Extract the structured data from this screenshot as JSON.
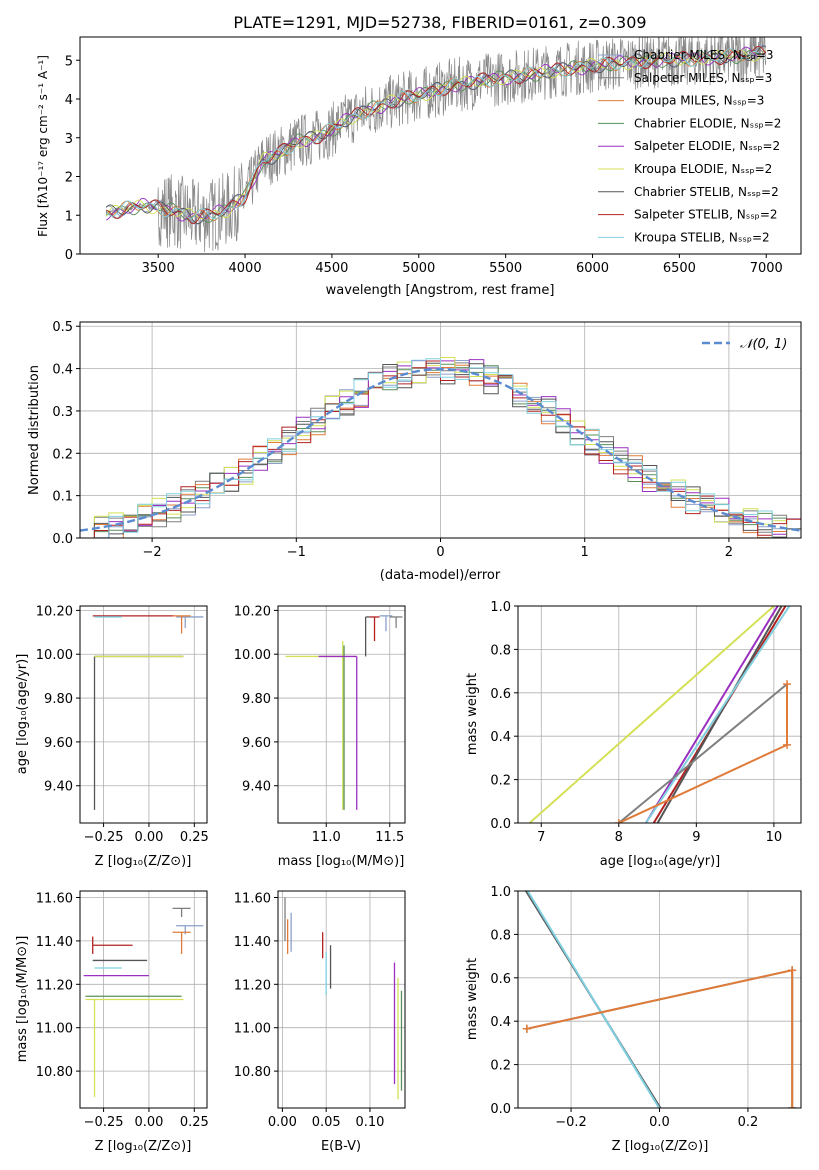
{
  "figure": {
    "title": "PLATE=1291, MJD=52738, FIBERID=0161, z=0.309"
  },
  "series_names": [
    "Chabrier MILES, Nₛₛₚ=3",
    "Salpeter MILES, Nₛₛₚ=3",
    "Kroupa MILES, Nₛₛₚ=3",
    "Chabrier ELODIE, Nₛₛₚ=2",
    "Salpeter ELODIE, Nₛₛₚ=2",
    "Kroupa ELODIE, Nₛₛₚ=2",
    "Chabrier STELIB, Nₛₛₚ=2",
    "Salpeter STELIB, Nₛₛₚ=2",
    "Kroupa STELIB, Nₛₛₚ=2"
  ],
  "colors": [
    "#8da0cb",
    "#7f7f7f",
    "#e07b39",
    "#5a8f5a",
    "#9b30c0",
    "#d4e157",
    "#555555",
    "#b22222",
    "#80d0e0"
  ],
  "chart_data": [
    {
      "id": "spectrum",
      "type": "line",
      "xlabel": "wavelength [Angstrom, rest frame]",
      "ylabel": "Flux [fλ10⁻¹⁷ erg cm⁻² s⁻¹ A⁻¹]",
      "xlim": [
        3050,
        7200
      ],
      "ylim": [
        0,
        5.6
      ],
      "xticks": [
        3500,
        4000,
        4500,
        5000,
        5500,
        6000,
        6500,
        7000
      ],
      "yticks": [
        0,
        1,
        2,
        3,
        4,
        5
      ],
      "grid": false,
      "legend": "upper right",
      "continuum": {
        "x": [
          3200,
          3300,
          3400,
          3500,
          3600,
          3700,
          3800,
          3900,
          4000,
          4100,
          4200,
          4300,
          4400,
          4500,
          4600,
          4700,
          4800,
          4900,
          5000,
          5200,
          5400,
          5600,
          5800,
          6000,
          6200,
          6400,
          6600,
          6800,
          7000
        ],
        "y": [
          1.05,
          1.15,
          1.25,
          1.2,
          1.1,
          0.95,
          1.0,
          1.15,
          1.5,
          2.4,
          2.6,
          2.9,
          3.0,
          3.2,
          3.5,
          3.7,
          3.85,
          4.0,
          4.1,
          4.35,
          4.5,
          4.6,
          4.75,
          4.85,
          4.95,
          5.0,
          5.05,
          5.1,
          5.2
        ]
      },
      "data_noise_sigma": 0.9
    },
    {
      "id": "residuals",
      "type": "histogram",
      "xlabel": "(data-model)/error",
      "ylabel": "Normed distribution",
      "xlim": [
        -2.5,
        2.5
      ],
      "ylim": [
        0,
        0.51
      ],
      "xticks": [
        -2,
        -1,
        0,
        1,
        2
      ],
      "yticks": [
        0.0,
        0.1,
        0.2,
        0.3,
        0.4,
        0.5
      ],
      "grid": true,
      "legend": "upper right",
      "reference_label": "𝒩(0, 1)",
      "reference_color": "#5b8bd0",
      "bin_width": 0.1
    },
    {
      "id": "age-vs-Z",
      "type": "scatter",
      "xlabel": "Z [log₁₀(Z/Z⊙)]",
      "ylabel": "age  [log₁₀(age/yr)]",
      "xlim": [
        -0.38,
        0.32
      ],
      "ylim": [
        9.23,
        10.22
      ],
      "xticks": [
        -0.25,
        0.0,
        0.25
      ],
      "yticks": [
        9.4,
        9.6,
        9.8,
        10.0,
        10.2
      ],
      "grid": true,
      "points": [
        {
          "s": 6,
          "x": -0.3,
          "y": 9.99,
          "xe": [
            0.0,
            0.49
          ],
          "ye": [
            0.7,
            0.0
          ]
        },
        {
          "s": 5,
          "x": -0.3,
          "y": 9.99,
          "xe": [
            0.0,
            0.49
          ],
          "ye": [
            0.0,
            0.0
          ]
        },
        {
          "s": 7,
          "x": -0.31,
          "y": 10.175,
          "xe": [
            0.0,
            0.45
          ],
          "ye": [
            0.0,
            0.0
          ]
        },
        {
          "s": 8,
          "x": -0.3,
          "y": 10.17,
          "xe": [
            0.0,
            0.15
          ],
          "ye": [
            0.0,
            0.0
          ]
        },
        {
          "s": 0,
          "x": 0.2,
          "y": 10.17,
          "xe": [
            0.05,
            0.1
          ],
          "ye": [
            0.05,
            0.0
          ]
        },
        {
          "s": 2,
          "x": 0.18,
          "y": 10.175,
          "xe": [
            0.05,
            0.05
          ],
          "ye": [
            0.08,
            0.0
          ]
        }
      ]
    },
    {
      "id": "age-vs-mass",
      "type": "scatter",
      "xlabel": "mass [log₁₀(M/M⊙)]",
      "ylabel": "",
      "xlim": [
        10.62,
        11.62
      ],
      "ylim": [
        9.23,
        10.22
      ],
      "xticks": [
        11.0,
        11.5
      ],
      "yticks": [
        9.4,
        9.6,
        9.8,
        10.0,
        10.2
      ],
      "grid": true,
      "points": [
        {
          "s": 5,
          "x": 11.13,
          "y": 9.99,
          "xe": [
            0.45,
            0.0
          ],
          "ye": [
            0.7,
            0.07
          ]
        },
        {
          "s": 3,
          "x": 11.14,
          "y": 9.99,
          "xe": [
            0.0,
            0.0
          ],
          "ye": [
            0.7,
            0.05
          ]
        },
        {
          "s": 4,
          "x": 11.24,
          "y": 9.99,
          "xe": [
            0.3,
            0.0
          ],
          "ye": [
            0.7,
            0.0
          ]
        },
        {
          "s": 7,
          "x": 11.38,
          "y": 10.17,
          "xe": [
            0.04,
            0.04
          ],
          "ye": [
            0.11,
            0.0
          ]
        },
        {
          "s": 6,
          "x": 11.31,
          "y": 10.17,
          "xe": [
            0.0,
            0.03
          ],
          "ye": [
            0.18,
            0.0
          ]
        },
        {
          "s": 0,
          "x": 11.47,
          "y": 10.175,
          "xe": [
            0.05,
            0.05
          ],
          "ye": [
            0.07,
            0.0
          ]
        },
        {
          "s": 1,
          "x": 11.55,
          "y": 10.17,
          "xe": [
            0.05,
            0.05
          ],
          "ye": [
            0.05,
            0.0
          ]
        }
      ]
    },
    {
      "id": "weight-vs-age",
      "type": "line",
      "xlabel": "age  [log₁₀(age/yr)]",
      "ylabel": "mass weight",
      "xlim": [
        6.7,
        10.35
      ],
      "ylim": [
        0,
        1
      ],
      "xticks": [
        7,
        8,
        9,
        10
      ],
      "yticks": [
        0.0,
        0.2,
        0.4,
        0.6,
        0.8,
        1.0
      ],
      "grid": true,
      "lines": [
        {
          "s": 5,
          "x": [
            6.85,
            10.0
          ],
          "y": [
            0.0,
            1.0
          ]
        },
        {
          "s": 4,
          "x": [
            8.35,
            10.05
          ],
          "y": [
            0.0,
            1.0
          ]
        },
        {
          "s": 7,
          "x": [
            8.45,
            10.15
          ],
          "y": [
            0.0,
            1.0
          ]
        },
        {
          "s": 6,
          "x": [
            8.5,
            10.1
          ],
          "y": [
            0.0,
            1.0
          ]
        },
        {
          "s": 8,
          "x": [
            8.35,
            10.2
          ],
          "y": [
            0.0,
            1.0
          ]
        },
        {
          "s": 1,
          "x": [
            8.0,
            10.17
          ],
          "y": [
            0.0,
            0.64
          ]
        },
        {
          "s": 2,
          "x": [
            8.0,
            10.17,
            10.17
          ],
          "y": [
            0.0,
            0.36,
            0.64
          ],
          "markers": true
        }
      ]
    },
    {
      "id": "mass-vs-Z",
      "type": "scatter",
      "xlabel": "Z [log₁₀(Z/Z⊙)]",
      "ylabel": "mass [log₁₀(M/M⊙)]",
      "xlim": [
        -0.38,
        0.32
      ],
      "ylim": [
        10.63,
        11.63
      ],
      "xticks": [
        -0.25,
        0.0,
        0.25
      ],
      "yticks": [
        10.8,
        11.0,
        11.2,
        11.4,
        11.6
      ],
      "grid": true,
      "points": [
        {
          "s": 5,
          "x": -0.3,
          "y": 11.13,
          "xe": [
            0.05,
            0.49
          ],
          "ye": [
            0.45,
            0.0
          ]
        },
        {
          "s": 3,
          "x": -0.3,
          "y": 11.145,
          "xe": [
            0.05,
            0.48
          ],
          "ye": [
            0.0,
            0.0
          ]
        },
        {
          "s": 4,
          "x": -0.3,
          "y": 11.24,
          "xe": [
            0.06,
            0.3
          ],
          "ye": [
            0.0,
            0.0
          ]
        },
        {
          "s": 8,
          "x": -0.3,
          "y": 11.275,
          "xe": [
            0.0,
            0.15
          ],
          "ye": [
            0.0,
            0.0
          ]
        },
        {
          "s": 6,
          "x": -0.31,
          "y": 11.31,
          "xe": [
            0.0,
            0.3
          ],
          "ye": [
            0.0,
            0.0
          ]
        },
        {
          "s": 7,
          "x": -0.31,
          "y": 11.38,
          "xe": [
            0.0,
            0.22
          ],
          "ye": [
            0.04,
            0.04
          ]
        },
        {
          "s": 0,
          "x": 0.2,
          "y": 11.47,
          "xe": [
            0.05,
            0.1
          ],
          "ye": [
            0.04,
            0.0
          ]
        },
        {
          "s": 1,
          "x": 0.18,
          "y": 11.55,
          "xe": [
            0.05,
            0.05
          ],
          "ye": [
            0.04,
            0.0
          ]
        },
        {
          "s": 2,
          "x": 0.18,
          "y": 11.44,
          "xe": [
            0.05,
            0.05
          ],
          "ye": [
            0.1,
            0.0
          ]
        }
      ]
    },
    {
      "id": "mass-vs-EBV",
      "type": "scatter",
      "xlabel": "E(B-V)",
      "ylabel": "",
      "xlim": [
        -0.005,
        0.14
      ],
      "ylim": [
        10.63,
        11.63
      ],
      "xticks": [
        0.0,
        0.05,
        0.1
      ],
      "yticks": [
        10.8,
        11.0,
        11.2,
        11.4,
        11.6
      ],
      "grid": true,
      "points": [
        {
          "s": 1,
          "x": 0.003,
          "y": 11.5,
          "xe": [
            0.0,
            0.0
          ],
          "ye": [
            0.1,
            0.1
          ]
        },
        {
          "s": 2,
          "x": 0.006,
          "y": 11.42,
          "xe": [
            0.0,
            0.0
          ],
          "ye": [
            0.08,
            0.08
          ]
        },
        {
          "s": 0,
          "x": 0.01,
          "y": 11.45,
          "xe": [
            0.0,
            0.0
          ],
          "ye": [
            0.1,
            0.08
          ]
        },
        {
          "s": 7,
          "x": 0.046,
          "y": 11.38,
          "xe": [
            0.0,
            0.0
          ],
          "ye": [
            0.06,
            0.06
          ]
        },
        {
          "s": 8,
          "x": 0.05,
          "y": 11.25,
          "xe": [
            0.0,
            0.0
          ],
          "ye": [
            0.1,
            0.1
          ]
        },
        {
          "s": 6,
          "x": 0.055,
          "y": 11.28,
          "xe": [
            0.0,
            0.0
          ],
          "ye": [
            0.1,
            0.1
          ]
        },
        {
          "s": 4,
          "x": 0.128,
          "y": 11.02,
          "xe": [
            0.0,
            0.0
          ],
          "ye": [
            0.28,
            0.28
          ]
        },
        {
          "s": 5,
          "x": 0.132,
          "y": 10.95,
          "xe": [
            0.0,
            0.0
          ],
          "ye": [
            0.28,
            0.28
          ]
        },
        {
          "s": 3,
          "x": 0.136,
          "y": 10.94,
          "xe": [
            0.0,
            0.0
          ],
          "ye": [
            0.23,
            0.23
          ]
        }
      ]
    },
    {
      "id": "weight-vs-Z",
      "type": "line",
      "xlabel": "Z [log₁₀(Z/Z⊙)]",
      "ylabel": "mass weight",
      "xlim": [
        -0.32,
        0.32
      ],
      "ylim": [
        0,
        1
      ],
      "xticks": [
        -0.2,
        0.0,
        0.2
      ],
      "yticks": [
        0.0,
        0.2,
        0.4,
        0.6,
        0.8,
        1.0
      ],
      "grid": true,
      "lines": [
        {
          "s": 0,
          "x": [
            -0.3,
            0.0
          ],
          "y": [
            1.0,
            0.0
          ]
        },
        {
          "s": 6,
          "x": [
            -0.302,
            0.002
          ],
          "y": [
            1.0,
            0.0
          ]
        },
        {
          "s": 8,
          "x": [
            -0.298,
            -0.001
          ],
          "y": [
            1.0,
            0.0
          ]
        },
        {
          "s": 1,
          "x": [
            -0.3,
            0.3,
            0.3
          ],
          "y": [
            0.365,
            0.635,
            0.0
          ],
          "markers": true
        },
        {
          "s": 2,
          "x": [
            -0.3,
            0.3,
            0.3
          ],
          "y": [
            0.365,
            0.635,
            0.0
          ],
          "markers": true
        }
      ]
    }
  ]
}
